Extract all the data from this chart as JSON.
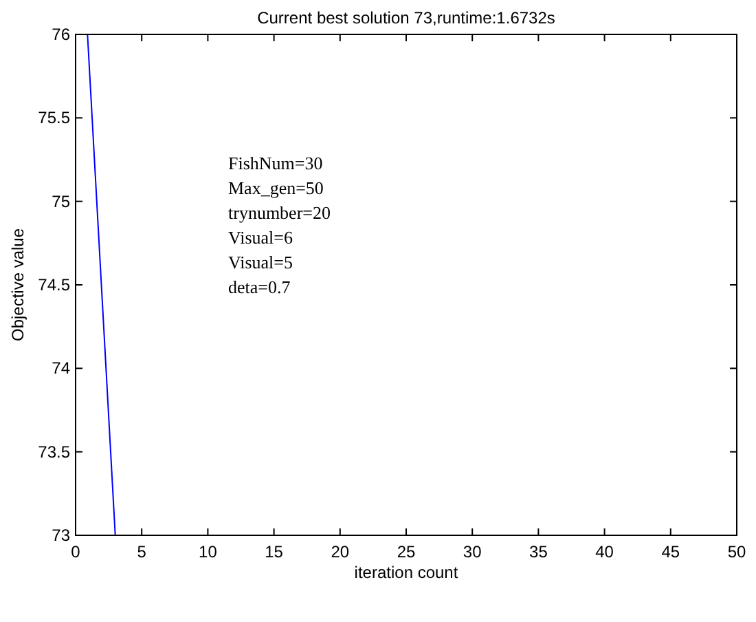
{
  "chart_data": {
    "type": "line",
    "title": "Current best solution 73,runtime:1.6732s",
    "xlabel": "iteration count",
    "ylabel": "Objective value",
    "x": [
      0.9,
      3
    ],
    "series": [
      {
        "color": "#0000ff",
        "values": [
          76,
          73
        ]
      }
    ],
    "xlim": [
      0,
      50
    ],
    "xticks": [
      0,
      5,
      10,
      15,
      20,
      25,
      30,
      35,
      40,
      45,
      50
    ],
    "ylim": [
      73,
      76
    ],
    "yticks": [
      73,
      73.5,
      74,
      74.5,
      75,
      75.5,
      76
    ],
    "grid": false,
    "marker": "none",
    "line_style": "solid",
    "annotations": [
      "FishNum=30",
      "Max_gen=50",
      "trynumber=20",
      "Visual=6",
      "Visual=5",
      "deta=0.7"
    ]
  }
}
